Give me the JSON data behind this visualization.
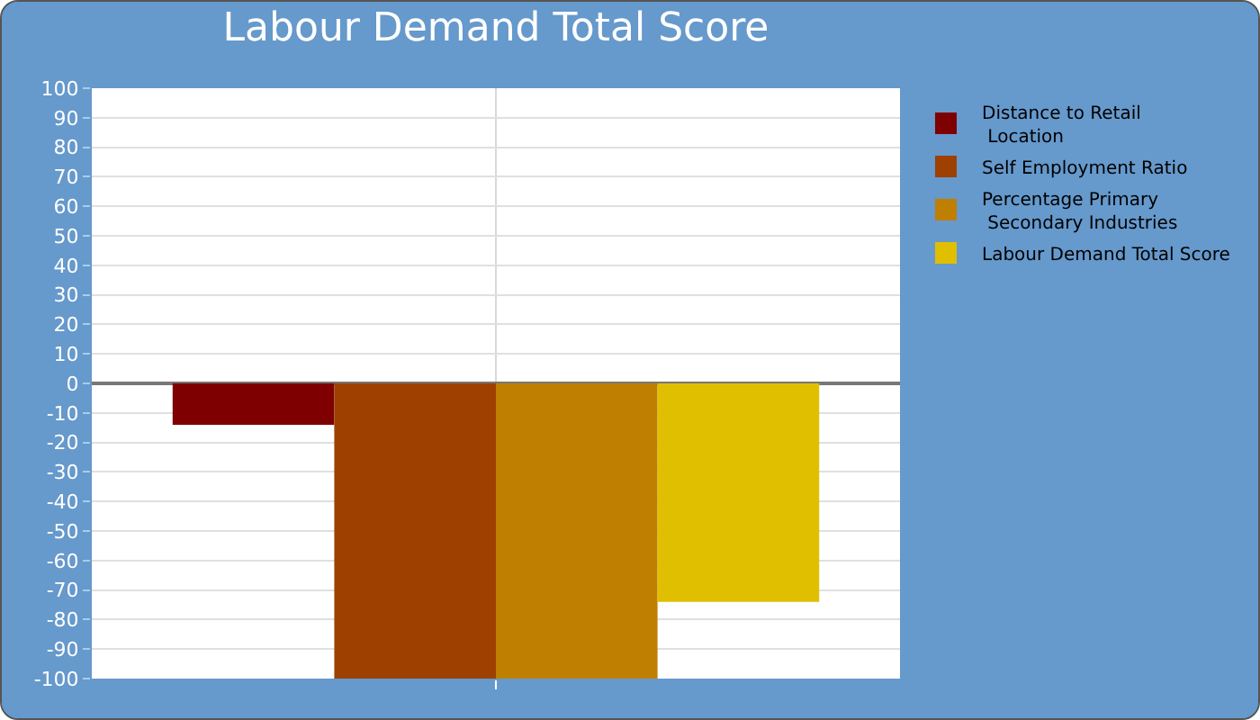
{
  "chart_data": {
    "type": "bar",
    "title": "Labour Demand Total Score",
    "categories": [
      null
    ],
    "series": [
      {
        "name": "Distance to Retail Location",
        "color": "#7f0000",
        "values": [
          -14
        ]
      },
      {
        "name": "Self Employment Ratio",
        "color": "#9e4000",
        "values": [
          -100
        ]
      },
      {
        "name": "Percentage Primary Secondary Industries",
        "color": "#bf7f00",
        "values": [
          -100
        ]
      },
      {
        "name": "Labour Demand Total Score",
        "color": "#dfbf00",
        "values": [
          -74
        ]
      }
    ],
    "ylim": [
      -100,
      100
    ],
    "yticks": [
      -100,
      -90,
      -80,
      -70,
      -60,
      -50,
      -40,
      -30,
      -20,
      -10,
      0,
      10,
      20,
      30,
      40,
      50,
      60,
      70,
      80,
      90,
      100
    ],
    "grid": true,
    "legend": "top right"
  }
}
